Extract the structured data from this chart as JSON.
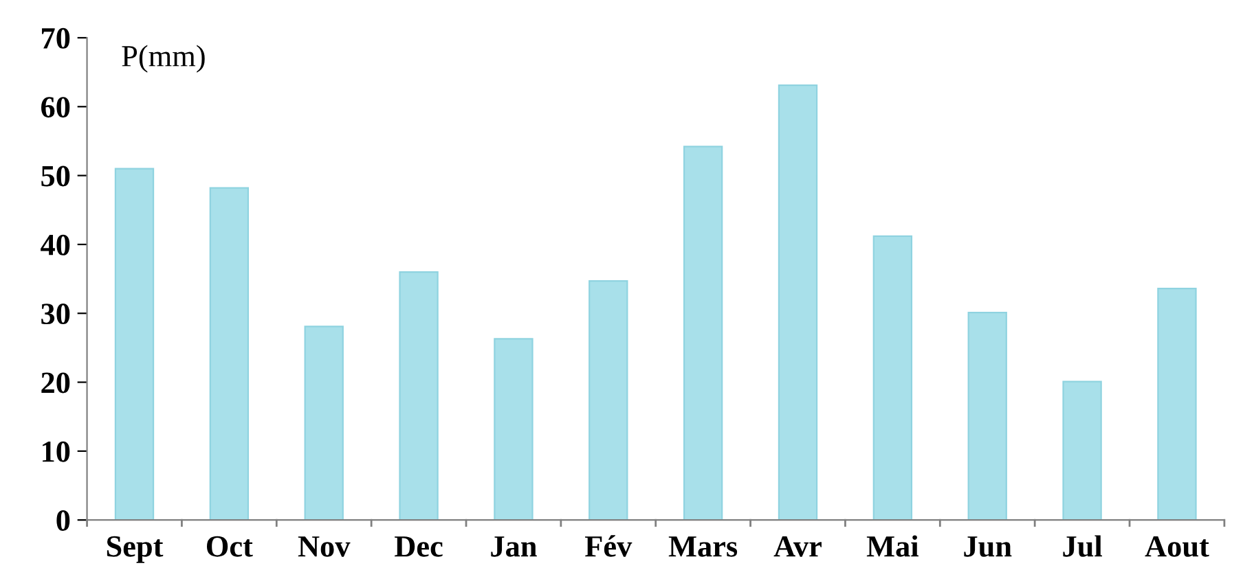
{
  "chart_data": {
    "type": "bar",
    "ylabel": "P(mm)",
    "categories": [
      "Sept",
      "Oct",
      "Nov",
      "Dec",
      "Jan",
      "Fév",
      "Mars",
      "Avr",
      "Mai",
      "Jun",
      "Jul",
      "Aout"
    ],
    "values": [
      51.0,
      48.2,
      28.1,
      36.0,
      26.3,
      34.7,
      54.2,
      63.1,
      41.2,
      30.1,
      20.1,
      33.6
    ],
    "color": "#a8e0ea",
    "ylim": [
      0,
      70
    ],
    "yticks": [
      0,
      10,
      20,
      30,
      40,
      50,
      60,
      70
    ],
    "grid": false,
    "legend": false
  }
}
